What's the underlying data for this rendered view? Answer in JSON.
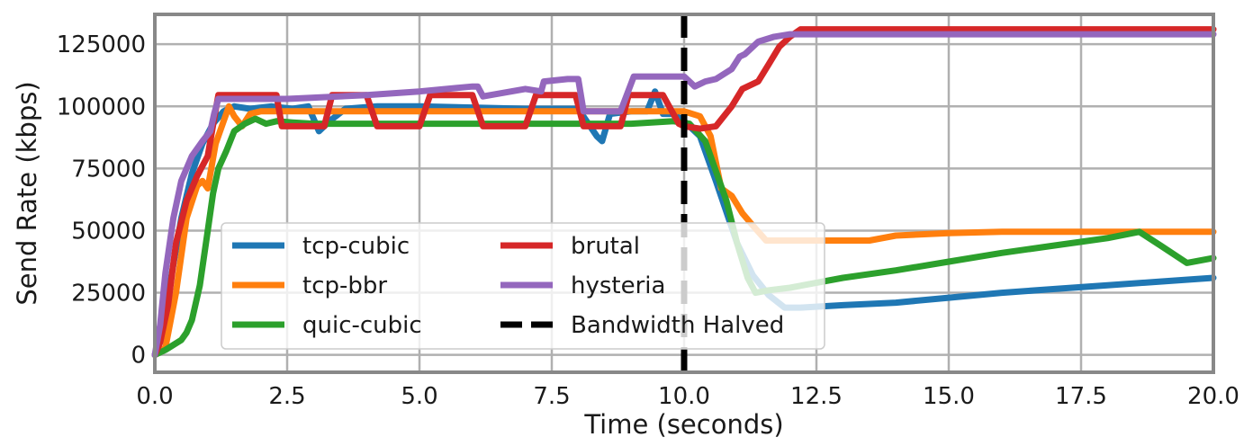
{
  "chart_data": {
    "type": "line",
    "title": "",
    "xlabel": "Time (seconds)",
    "ylabel": "Send Rate (kbps)",
    "xlim": [
      0,
      20
    ],
    "ylim": [
      -7000,
      137000
    ],
    "xticks": [
      0,
      2.5,
      5,
      7.5,
      10,
      12.5,
      15,
      17.5,
      20
    ],
    "xtick_labels": [
      "0.0",
      "2.5",
      "5.0",
      "7.5",
      "10.0",
      "12.5",
      "15.0",
      "17.5",
      "20.0"
    ],
    "yticks": [
      0,
      25000,
      50000,
      75000,
      100000,
      125000
    ],
    "ytick_labels": [
      "0",
      "25000",
      "50000",
      "75000",
      "100000",
      "125000"
    ],
    "grid": true,
    "legend_position": "lower-left",
    "series": [
      {
        "name": "tcp-cubic",
        "color": "#1f77b4",
        "x": [
          0,
          0.15,
          0.3,
          0.5,
          0.7,
          0.9,
          1.1,
          1.3,
          1.5,
          1.8,
          2.2,
          2.6,
          2.9,
          3.1,
          3.3,
          3.6,
          4.2,
          5.0,
          6.0,
          7.0,
          8.0,
          8.35,
          8.45,
          8.6,
          9.0,
          9.3,
          9.45,
          9.6,
          9.8,
          10.0,
          10.3,
          10.6,
          11.0,
          11.3,
          11.6,
          11.9,
          12.2,
          13.0,
          14.0,
          15.0,
          16.0,
          17.0,
          18.0,
          19.0,
          20.0
        ],
        "y": [
          0,
          8000,
          30000,
          55000,
          73000,
          85000,
          93000,
          98000,
          100000,
          99000,
          100000,
          99000,
          100000,
          90000,
          94000,
          99000,
          100000,
          100000,
          99500,
          99000,
          99000,
          88000,
          86000,
          97000,
          98000,
          98000,
          106000,
          97000,
          97000,
          94000,
          88000,
          70000,
          45000,
          32000,
          24000,
          19000,
          19000,
          20000,
          21000,
          23000,
          25000,
          26500,
          28000,
          29500,
          31000
        ]
      },
      {
        "name": "tcp-bbr",
        "color": "#ff7f0e",
        "x": [
          0,
          0.2,
          0.4,
          0.6,
          0.8,
          0.9,
          1.0,
          1.15,
          1.3,
          1.4,
          1.5,
          1.65,
          1.8,
          2.0,
          2.5,
          3.0,
          4.0,
          5.0,
          6.0,
          7.0,
          8.0,
          9.0,
          10.0,
          10.3,
          10.5,
          10.7,
          10.9,
          11.1,
          11.3,
          11.55,
          12.0,
          13.0,
          13.5,
          14.0,
          15.0,
          16.0,
          17.0,
          18.0,
          19.0,
          20.0
        ],
        "y": [
          0,
          3000,
          25000,
          55000,
          68000,
          70000,
          67000,
          85000,
          94000,
          100000,
          96000,
          92000,
          97000,
          98000,
          98000,
          98000,
          98000,
          98000,
          98000,
          98000,
          98000,
          98000,
          98000,
          96000,
          88000,
          67000,
          64000,
          57000,
          52000,
          46000,
          46000,
          46000,
          46000,
          48000,
          49000,
          49500,
          49500,
          49500,
          49500,
          49500
        ]
      },
      {
        "name": "quic-cubic",
        "color": "#2ca02c",
        "x": [
          0,
          0.2,
          0.35,
          0.5,
          0.6,
          0.7,
          0.85,
          1.0,
          1.1,
          1.2,
          1.35,
          1.5,
          1.7,
          1.9,
          2.1,
          2.3,
          2.6,
          3.0,
          4.0,
          5.0,
          6.0,
          7.0,
          8.0,
          9.0,
          9.8,
          10.1,
          10.4,
          10.8,
          11.0,
          11.2,
          11.35,
          11.6,
          12.0,
          13.0,
          14.0,
          15.0,
          16.0,
          17.0,
          18.0,
          18.6,
          19.0,
          19.5,
          20.0
        ],
        "y": [
          0,
          2000,
          4000,
          6000,
          9000,
          14000,
          28000,
          50000,
          65000,
          75000,
          82000,
          90000,
          93000,
          95000,
          93000,
          94000,
          93500,
          93000,
          93000,
          93000,
          93000,
          93000,
          93000,
          93000,
          94000,
          93000,
          86000,
          62000,
          45000,
          31000,
          25000,
          26000,
          27000,
          31000,
          34000,
          37500,
          41000,
          44000,
          47000,
          49500,
          44000,
          37000,
          39000
        ]
      },
      {
        "name": "brutal",
        "color": "#d62728",
        "x": [
          0,
          0.1,
          0.25,
          0.4,
          0.6,
          0.8,
          1.0,
          1.12,
          1.2,
          1.5,
          1.8,
          2.0,
          2.15,
          2.3,
          2.4,
          3.0,
          3.2,
          3.35,
          3.8,
          3.95,
          4.0,
          4.2,
          4.4,
          5.0,
          5.2,
          5.4,
          6.0,
          6.2,
          6.4,
          7.0,
          7.2,
          7.4,
          7.95,
          8.1,
          8.3,
          8.8,
          8.95,
          9.15,
          9.6,
          9.9,
          10.0,
          10.3,
          10.6,
          10.9,
          11.1,
          11.4,
          11.6,
          11.8,
          12.0,
          12.2,
          12.5,
          13.0,
          14.0,
          15.0,
          16.0,
          17.0,
          18.0,
          19.0,
          20.0
        ],
        "y": [
          0,
          5000,
          20000,
          45000,
          62000,
          72000,
          80000,
          95000,
          104500,
          104500,
          104500,
          104500,
          104500,
          104500,
          92000,
          92000,
          92000,
          104500,
          104500,
          104500,
          104500,
          92000,
          92000,
          92000,
          104500,
          104500,
          104500,
          92000,
          92000,
          92000,
          104500,
          104500,
          104500,
          92000,
          92000,
          92000,
          104500,
          104500,
          104500,
          93000,
          92000,
          91000,
          92000,
          100000,
          107000,
          110000,
          117000,
          124000,
          128000,
          131000,
          131000,
          131000,
          131000,
          131000,
          131000,
          131000,
          131000,
          131000,
          131000
        ]
      },
      {
        "name": "hysteria",
        "color": "#9467bd",
        "x": [
          0,
          0.1,
          0.2,
          0.35,
          0.5,
          0.7,
          0.9,
          1.05,
          1.12,
          1.2,
          1.5,
          2.0,
          2.5,
          3.0,
          4.0,
          5.0,
          6.0,
          6.1,
          6.2,
          7.0,
          7.3,
          7.35,
          7.8,
          8.0,
          8.1,
          8.3,
          8.8,
          9.05,
          9.15,
          9.6,
          10.0,
          10.2,
          10.4,
          10.6,
          10.9,
          11.05,
          11.15,
          11.4,
          11.7,
          12.0,
          12.5,
          13.0,
          14.0,
          15.0,
          16.0,
          17.0,
          18.0,
          19.0,
          20.0
        ],
        "y": [
          0,
          12000,
          33000,
          55000,
          70000,
          80000,
          86000,
          90000,
          97000,
          103000,
          103000,
          103000,
          103000,
          103500,
          104500,
          106000,
          108000,
          108000,
          104000,
          107000,
          106000,
          110000,
          111000,
          111000,
          98000,
          98000,
          98000,
          112000,
          112000,
          112000,
          112000,
          108000,
          110000,
          111000,
          115000,
          120000,
          121000,
          126000,
          128000,
          129000,
          129000,
          129000,
          129000,
          129000,
          129000,
          129000,
          129000,
          129000,
          129000
        ]
      }
    ],
    "reference_line": {
      "name": "Bandwidth Halved",
      "x": 10.0,
      "color": "#000000",
      "style": "dashed"
    },
    "legend_entries": [
      "tcp-cubic",
      "brutal",
      "tcp-bbr",
      "hysteria",
      "quic-cubic",
      "Bandwidth Halved"
    ]
  }
}
